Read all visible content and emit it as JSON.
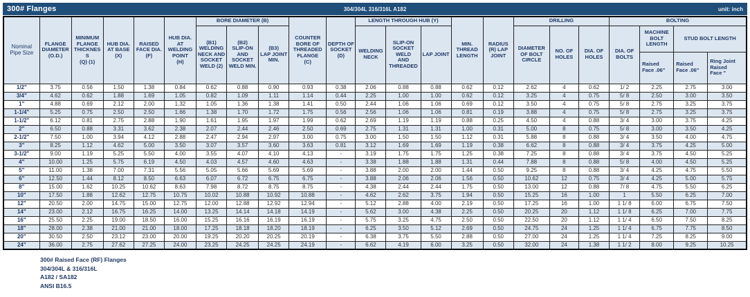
{
  "title_bar": {
    "title": "300# Flanges",
    "material": "304/304L 316/316L A182",
    "unit_label": "unit: inch"
  },
  "table": {
    "headers": {
      "nominal_pipe_size": "Nominal\nPipe Size",
      "flange_diameter": "FLANGE\nDIAMETER\n(O.D.)",
      "min_flange_thickness": "MINIMUM\nFLANGE\nTHICKNES\nS\n(Q) (1)",
      "hub_dia_base": "HUB DIA.\nAT BASE\n(X)",
      "raised_face_dia": "RAISED\nFACE DIA.\n(F)",
      "hub_dia_welding": "HUB DIA.\nAT\nWELDING\nPOINT\n(H)",
      "bore_diameter_group": "BORE DIAMETER (B)",
      "b1": "(B1)\nWELDING\nNECK AND\nSOCKET\nWELD (2)",
      "b2": "(B2)\nSLIP-ON AND\nSOCKET\nWELD MIN.",
      "b3": "(B3)\nLAP JOINT\nMIN.",
      "counter_bore": "COUNTER\nBORE OF\nTHREADED\nFLANGE\n(C)",
      "depth_socket": "DEPTH OF\nSOCKET\n(D)",
      "length_hub_group": "LENGTH THROUGH HUB (Y)",
      "welding_neck": "WELDING\nNECK",
      "slip_on": "SLIP-ON\nSOCKET\nWELD\nAND\nTHREADED",
      "lap_joint": "LAP JOINT",
      "min_thread": "MIN.\nTHREAD\nLENGTH",
      "radius_lap_joint": "RADIUS\n(R) LAP\nJOINT",
      "drilling_group": "DRILLING",
      "bolt_circle": "DIAMETER\nOF BOLT\nCIRCLE",
      "no_holes": "NO. OF\nHOLES",
      "dia_holes": "DIA. OF\nHOLES",
      "bolting_group": "BOLTING",
      "dia_bolts": "DIA. OF\nBOLTS",
      "machine_bolt_group": "MACHINE\nBOLT\nLENGTH",
      "stud_bolt_group": "STUD BOLT LENGTH",
      "machine_raised_face": "Raised\nFace .06\"",
      "stud_raised_face": "Raised\nFace .06\"",
      "stud_ring_joint": "Ring Joint\nRaised\nFace \""
    },
    "rows": [
      [
        "1/2\"",
        "3.75",
        "0.56",
        "1.50",
        "1.38",
        "0.84",
        "0.62",
        "0.88",
        "0.90",
        "0.93",
        "0.38",
        "2.06",
        "0.88",
        "0.88",
        "0.62",
        "0.12",
        "2.62",
        "4",
        "0.62",
        "1/ 2",
        "2.25",
        "2.75",
        "3.00"
      ],
      [
        "3/4\"",
        "4.62",
        "0.62",
        "1.88",
        "1.69",
        "1.05",
        "0.82",
        "1.09",
        "1.11",
        "1.14",
        "0.44",
        "2.25",
        "1.00",
        "1.00",
        "0.62",
        "0.12",
        "3.25",
        "4",
        "0.75",
        "5/ 8",
        "2.50",
        "3.00",
        "3.50"
      ],
      [
        "1\"",
        "4.88",
        "0.69",
        "2.12",
        "2.00",
        "1.32",
        "1.05",
        "1.36",
        "1.38",
        "1.41",
        "0.50",
        "2.44",
        "1.06",
        "1.06",
        "0.69",
        "0.12",
        "3.50",
        "4",
        "0.75",
        "5/ 8",
        "2.75",
        "3.25",
        "3.75"
      ],
      [
        "1-1/4\"",
        "5.25",
        "0.75",
        "2.50",
        "2.50",
        "1.66",
        "1.38",
        "1.70",
        "1.72",
        "1.75",
        "0.56",
        "2.56",
        "1.06",
        "1.06",
        "0.81",
        "0.19",
        "3.88",
        "4",
        "0.75",
        "5/ 8",
        "2.75",
        "3.25",
        "3.75"
      ],
      [
        "1-1/2\"",
        "6.12",
        "0.81",
        "2.75",
        "2.88",
        "1.90",
        "1.61",
        "1.95",
        "1.97",
        "1.99",
        "0.62",
        "2.69",
        "1.19",
        "1.19",
        "0.88",
        "0.25",
        "4.50",
        "4",
        "0.88",
        "3/ 4",
        "3.00",
        "3.75",
        "4.25"
      ],
      [
        "2\"",
        "6.50",
        "0.88",
        "3.31",
        "3.62",
        "2.38",
        "2.07",
        "2.44",
        "2.46",
        "2.50",
        "0.69",
        "2.75",
        "1.31",
        "1.31",
        "1.00",
        "0.31",
        "5.00",
        "8",
        "0.75",
        "5/ 8",
        "3.00",
        "3.50",
        "4.25"
      ],
      [
        "2-1/2\"",
        "7.50",
        "1.00",
        "3.94",
        "4.12",
        "2.88",
        "2.47",
        "2.94",
        "2.97",
        "3.00",
        "0.75",
        "3.00",
        "1.50",
        "1.50",
        "1.12",
        "0.31",
        "5.88",
        "8",
        "0.88",
        "3/ 4",
        "3.50",
        "4.00",
        "4.75"
      ],
      [
        "3\"",
        "8.25",
        "1.12",
        "4.62",
        "5.00",
        "3.50",
        "3.07",
        "3.57",
        "3.60",
        "3.63",
        "0.81",
        "3.12",
        "1.69",
        "1.69",
        "1.19",
        "0.38",
        "6.62",
        "8",
        "0.88",
        "3/ 4",
        "3.75",
        "4.25",
        "5.00"
      ],
      [
        "3-1/2\"",
        "9.00",
        "1.19",
        "5.25",
        "5.50",
        "4.00",
        "3.55",
        "4.07",
        "4.10",
        "4.13",
        "-",
        "3.19",
        "1.75",
        "1.75",
        "1.25",
        "0.38",
        "7.25",
        "8",
        "0.88",
        "3/ 4",
        "3.75",
        "4.50",
        "5.25"
      ],
      [
        "4\"",
        "10.00",
        "1.25",
        "5.75",
        "6.19",
        "4.50",
        "4.03",
        "4.57",
        "4.60",
        "4.63",
        "-",
        "3.38",
        "1.88",
        "1.88",
        "1.31",
        "0.44",
        "7.88",
        "8",
        "0.88",
        "5/ 8",
        "4.00",
        "4.50",
        "5.25"
      ],
      [
        "5\"",
        "11.00",
        "1.38",
        "7.00",
        "7.31",
        "5.56",
        "5.05",
        "5.66",
        "5.69",
        "5.69",
        "-",
        "3.88",
        "2.00",
        "2.00",
        "1.44",
        "0.50",
        "9.25",
        "8",
        "0.88",
        "3/ 4",
        "4.25",
        "4.75",
        "5.50"
      ],
      [
        "6\"",
        "12.50",
        "1.44",
        "8.12",
        "8.50",
        "6.63",
        "6.07",
        "6.72",
        "6.75",
        "6.75",
        "-",
        "3.88",
        "2.06",
        "2.06",
        "1.56",
        "0.50",
        "10.62",
        "12",
        "0.75",
        "3/ 4",
        "4.25",
        "5.00",
        "5.75"
      ],
      [
        "8\"",
        "15.00",
        "1.62",
        "10.25",
        "10.62",
        "8.63",
        "7.98",
        "8.72",
        "8.75",
        "8.75",
        "-",
        "4.38",
        "2.44",
        "2.44",
        "1.75",
        "0.50",
        "13.00",
        "12",
        "0.88",
        "7/ 8",
        "4.75",
        "5.50",
        "6.25"
      ],
      [
        "10\"",
        "17.50",
        "1.88",
        "12.62",
        "12.75",
        "10.75",
        "10.02",
        "10.88",
        "10.92",
        "10.88",
        "-",
        "4.62",
        "2.62",
        "3.75",
        "1.94",
        "0.50",
        "15.25",
        "16",
        "1.00",
        "1",
        "5.50",
        "6.25",
        "7.00"
      ],
      [
        "12\"",
        "20.50",
        "2.00",
        "14.75",
        "15.00",
        "12.75",
        "12.00",
        "12.88",
        "12.92",
        "12.94",
        "-",
        "5.12",
        "2.88",
        "4.00",
        "2.19",
        "0.50",
        "17.25",
        "16",
        "1.00",
        "1 1/ 8",
        "6.00",
        "6.75",
        "7.50"
      ],
      [
        "14\"",
        "23.00",
        "2.12",
        "16.75",
        "16.25",
        "14.00",
        "13.25",
        "14.14",
        "14.18",
        "14.19",
        "-",
        "5.62",
        "3.00",
        "4.38",
        "2.25",
        "0.50",
        "20.25",
        "20",
        "1.12",
        "1 1/ 8",
        "6.25",
        "7.00",
        "7.75"
      ],
      [
        "16\"",
        "25.50",
        "2.25",
        "19.00",
        "18.50",
        "16.00",
        "15.25",
        "16.16",
        "16.19",
        "16.19",
        "-",
        "5.75",
        "3.25",
        "4.75",
        "2.50",
        "0.50",
        "22.50",
        "20",
        "1.12",
        "1 1/ 4",
        "6.50",
        "7.50",
        "8.25"
      ],
      [
        "18\"",
        "28.00",
        "2.38",
        "21.00",
        "21.00",
        "18.00",
        "17.25",
        "18.18",
        "18.20",
        "18.19",
        "-",
        "6.25",
        "3.50",
        "5.12",
        "2.69",
        "0.50",
        "24.75",
        "24",
        "1.25",
        "1 1/ 4",
        "6.75",
        "7.75",
        "8.50"
      ],
      [
        "20\"",
        "30.50",
        "2.50",
        "23.12",
        "23.00",
        "20.00",
        "19.25",
        "20.20",
        "20.25",
        "20.19",
        "-",
        "6.38",
        "3.75",
        "5.50",
        "2.88",
        "0.50",
        "27.00",
        "24",
        "1.25",
        "1 1/ 4",
        "7.25",
        "8.25",
        "9.00"
      ],
      [
        "24\"",
        "36.00",
        "2.75",
        "27.62",
        "27.25",
        "24.00",
        "23.25",
        "24.25",
        "24.25",
        "24.19",
        "-",
        "6.62",
        "4.19",
        "6.00",
        "3.25",
        "0.50",
        "32.00",
        "24",
        "1.38",
        "1 1/ 2",
        "8.00",
        "9.25",
        "10.25"
      ]
    ]
  },
  "footer": {
    "line1": "300# Raised Face (RF) Flanges",
    "line2": "304/304L & 316/316L",
    "line3": "A182 / SA182",
    "line4": "ANSI B16.5"
  },
  "colors": {
    "title_bar_bg": "#1F4E79",
    "header_fill": "#DCE6F1",
    "alt_row_fill": "#DCE6F1",
    "header_text": "#1F3864"
  }
}
